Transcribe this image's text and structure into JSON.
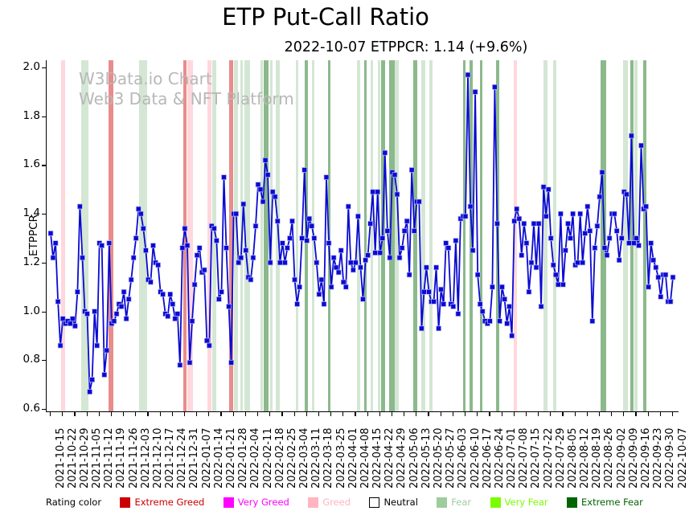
{
  "title": "ETP Put-Call Ratio",
  "subtitle": "2022-10-07 ETPPCR: 1.14 (+9.6%)",
  "watermark": {
    "line1": "W3Data.io Chart",
    "line2": "Web3 Data & NFT Platform"
  },
  "legend": {
    "label": "Rating color",
    "items": [
      {
        "name": "Extreme Greed",
        "color": "#cc0000",
        "border": "#cc0000"
      },
      {
        "name": "Very Greed",
        "color": "#ff00ff",
        "border": "#ff00ff"
      },
      {
        "name": "Greed",
        "color": "#ffb6c1",
        "border": "#ffb6c1"
      },
      {
        "name": "Neutral",
        "color": "#ffffff",
        "border": "#000000",
        "text_color": "#000000"
      },
      {
        "name": "Fear",
        "color": "#9fcc9f",
        "border": "#9fcc9f"
      },
      {
        "name": "Very Fear",
        "color": "#7cfc00",
        "border": "#7cfc00"
      },
      {
        "name": "Extreme Fear",
        "color": "#006400",
        "border": "#006400"
      }
    ]
  },
  "chart_data": {
    "type": "line",
    "title": "ETP Put-Call Ratio",
    "ylabel": "ETPPCR",
    "ylim": [
      0.6,
      2.0
    ],
    "yticks": [
      0.6,
      0.8,
      1.0,
      1.2,
      1.4,
      1.6,
      1.8,
      2.0
    ],
    "line_color": "#0a0ad2",
    "marker": "square",
    "x_tick_labels": [
      "2021-10-15",
      "2021-10-22",
      "2021-10-29",
      "2021-11-05",
      "2021-11-12",
      "2021-11-19",
      "2021-11-26",
      "2021-12-03",
      "2021-12-10",
      "2021-12-17",
      "2021-12-24",
      "2021-12-31",
      "2022-01-07",
      "2022-01-14",
      "2022-01-21",
      "2022-01-28",
      "2022-02-04",
      "2022-02-11",
      "2022-02-18",
      "2022-02-25",
      "2022-03-04",
      "2022-03-11",
      "2022-03-18",
      "2022-03-25",
      "2022-04-01",
      "2022-04-08",
      "2022-04-15",
      "2022-04-22",
      "2022-04-29",
      "2022-05-06",
      "2022-05-13",
      "2022-05-20",
      "2022-05-27",
      "2022-06-03",
      "2022-06-10",
      "2022-06-17",
      "2022-06-24",
      "2022-07-01",
      "2022-07-08",
      "2022-07-15",
      "2022-07-22",
      "2022-07-29",
      "2022-08-05",
      "2022-08-12",
      "2022-08-19",
      "2022-08-26",
      "2022-09-02",
      "2022-09-09",
      "2022-09-16",
      "2022-09-23",
      "2022-09-30",
      "2022-10-07"
    ],
    "points_per_week": 5,
    "series": [
      {
        "name": "ETPPCR",
        "values": [
          1.32,
          1.22,
          1.28,
          1.04,
          0.86,
          0.97,
          0.95,
          0.96,
          0.95,
          0.97,
          0.94,
          1.08,
          1.43,
          1.22,
          1.0,
          0.99,
          0.67,
          0.72,
          1.0,
          0.86,
          1.28,
          1.27,
          0.74,
          0.84,
          1.28,
          0.95,
          0.96,
          0.99,
          1.03,
          1.02,
          1.08,
          0.97,
          1.05,
          1.13,
          1.22,
          1.3,
          1.42,
          1.4,
          1.34,
          1.25,
          1.13,
          1.12,
          1.27,
          1.2,
          1.19,
          1.08,
          1.07,
          0.99,
          0.98,
          1.07,
          1.03,
          0.97,
          0.99,
          0.78,
          1.26,
          1.34,
          1.27,
          0.79,
          0.96,
          1.11,
          1.23,
          1.26,
          1.16,
          1.17,
          0.88,
          0.86,
          1.35,
          1.34,
          1.29,
          1.05,
          1.08,
          1.55,
          1.26,
          1.02,
          0.79,
          1.4,
          1.4,
          1.2,
          1.22,
          1.44,
          1.25,
          1.14,
          1.13,
          1.22,
          1.35,
          1.52,
          1.5,
          1.45,
          1.62,
          1.56,
          1.2,
          1.49,
          1.47,
          1.37,
          1.2,
          1.28,
          1.2,
          1.26,
          1.3,
          1.37,
          1.13,
          1.03,
          1.1,
          1.3,
          1.58,
          1.29,
          1.38,
          1.35,
          1.3,
          1.2,
          1.07,
          1.13,
          1.03,
          1.55,
          1.28,
          1.1,
          1.22,
          1.18,
          1.16,
          1.25,
          1.12,
          1.1,
          1.43,
          1.2,
          1.17,
          1.2,
          1.39,
          1.18,
          1.05,
          1.21,
          1.23,
          1.36,
          1.49,
          1.24,
          1.49,
          1.24,
          1.3,
          1.65,
          1.33,
          1.22,
          1.57,
          1.56,
          1.48,
          1.22,
          1.26,
          1.33,
          1.37,
          1.15,
          1.58,
          1.33,
          1.45,
          1.45,
          0.93,
          1.08,
          1.18,
          1.08,
          1.04,
          1.04,
          1.18,
          0.93,
          1.09,
          1.03,
          1.28,
          1.26,
          1.03,
          1.02,
          1.29,
          0.99,
          1.38,
          1.39,
          1.39,
          1.97,
          1.43,
          1.25,
          1.9,
          1.15,
          1.03,
          1.0,
          0.96,
          0.95,
          0.96,
          1.1,
          1.92,
          1.36,
          0.96,
          1.1,
          1.05,
          0.95,
          1.02,
          0.9,
          1.37,
          1.42,
          1.38,
          1.23,
          1.36,
          1.28,
          1.08,
          1.2,
          1.36,
          1.18,
          1.36,
          1.02,
          1.51,
          1.39,
          1.5,
          1.3,
          1.19,
          1.15,
          1.11,
          1.4,
          1.11,
          1.25,
          1.36,
          1.3,
          1.4,
          1.19,
          1.2,
          1.4,
          1.2,
          1.32,
          1.43,
          1.33,
          0.96,
          1.26,
          1.35,
          1.47,
          1.57,
          1.26,
          1.23,
          1.3,
          1.4,
          1.4,
          1.33,
          1.21,
          1.3,
          1.49,
          1.48,
          1.28,
          1.72,
          1.28,
          1.3,
          1.27,
          1.68,
          1.42,
          1.43,
          1.1,
          1.28,
          1.21,
          1.18,
          1.14,
          1.06,
          1.15,
          1.15,
          1.04,
          1.04,
          1.14
        ]
      }
    ],
    "band_colors": {
      "extreme_greed": "rgba(204,0,0,0.45)",
      "greed": "rgba(255,182,193,0.55)",
      "fear": "rgba(143,188,143,0.38)",
      "extreme_fear": "rgba(0,100,0,0.45)"
    },
    "bands": [
      [
        0.017,
        0.023,
        "greed"
      ],
      [
        0.049,
        0.061,
        "fear"
      ],
      [
        0.093,
        0.101,
        "extreme_greed"
      ],
      [
        0.142,
        0.155,
        "fear"
      ],
      [
        0.213,
        0.218,
        "extreme_greed"
      ],
      [
        0.22,
        0.229,
        "greed"
      ],
      [
        0.252,
        0.258,
        "greed"
      ],
      [
        0.26,
        0.266,
        "fear"
      ],
      [
        0.287,
        0.293,
        "extreme_greed"
      ],
      [
        0.295,
        0.301,
        "fear"
      ],
      [
        0.305,
        0.309,
        "fear"
      ],
      [
        0.311,
        0.32,
        "fear"
      ],
      [
        0.337,
        0.341,
        "fear"
      ],
      [
        0.342,
        0.35,
        "extreme_fear"
      ],
      [
        0.353,
        0.357,
        "fear"
      ],
      [
        0.362,
        0.368,
        "fear"
      ],
      [
        0.394,
        0.398,
        "fear"
      ],
      [
        0.408,
        0.413,
        "extreme_fear"
      ],
      [
        0.42,
        0.424,
        "fear"
      ],
      [
        0.446,
        0.45,
        "extreme_fear"
      ],
      [
        0.492,
        0.497,
        "fear"
      ],
      [
        0.504,
        0.508,
        "extreme_fear"
      ],
      [
        0.514,
        0.518,
        "fear"
      ],
      [
        0.526,
        0.53,
        "fear"
      ],
      [
        0.531,
        0.537,
        "extreme_fear"
      ],
      [
        0.544,
        0.553,
        "extreme_fear"
      ],
      [
        0.553,
        0.559,
        "fear"
      ],
      [
        0.583,
        0.589,
        "extreme_fear"
      ],
      [
        0.596,
        0.602,
        "fear"
      ],
      [
        0.609,
        0.614,
        "fear"
      ],
      [
        0.663,
        0.667,
        "extreme_fear"
      ],
      [
        0.673,
        0.678,
        "extreme_fear"
      ],
      [
        0.69,
        0.694,
        "extreme_fear"
      ],
      [
        0.716,
        0.721,
        "extreme_fear"
      ],
      [
        0.744,
        0.749,
        "greed"
      ],
      [
        0.792,
        0.798,
        "fear"
      ],
      [
        0.808,
        0.813,
        "fear"
      ],
      [
        0.884,
        0.893,
        "extreme_fear"
      ],
      [
        0.92,
        0.928,
        "fear"
      ],
      [
        0.932,
        0.937,
        "extreme_fear"
      ],
      [
        0.938,
        0.943,
        "fear"
      ],
      [
        0.952,
        0.957,
        "extreme_fear"
      ]
    ]
  }
}
